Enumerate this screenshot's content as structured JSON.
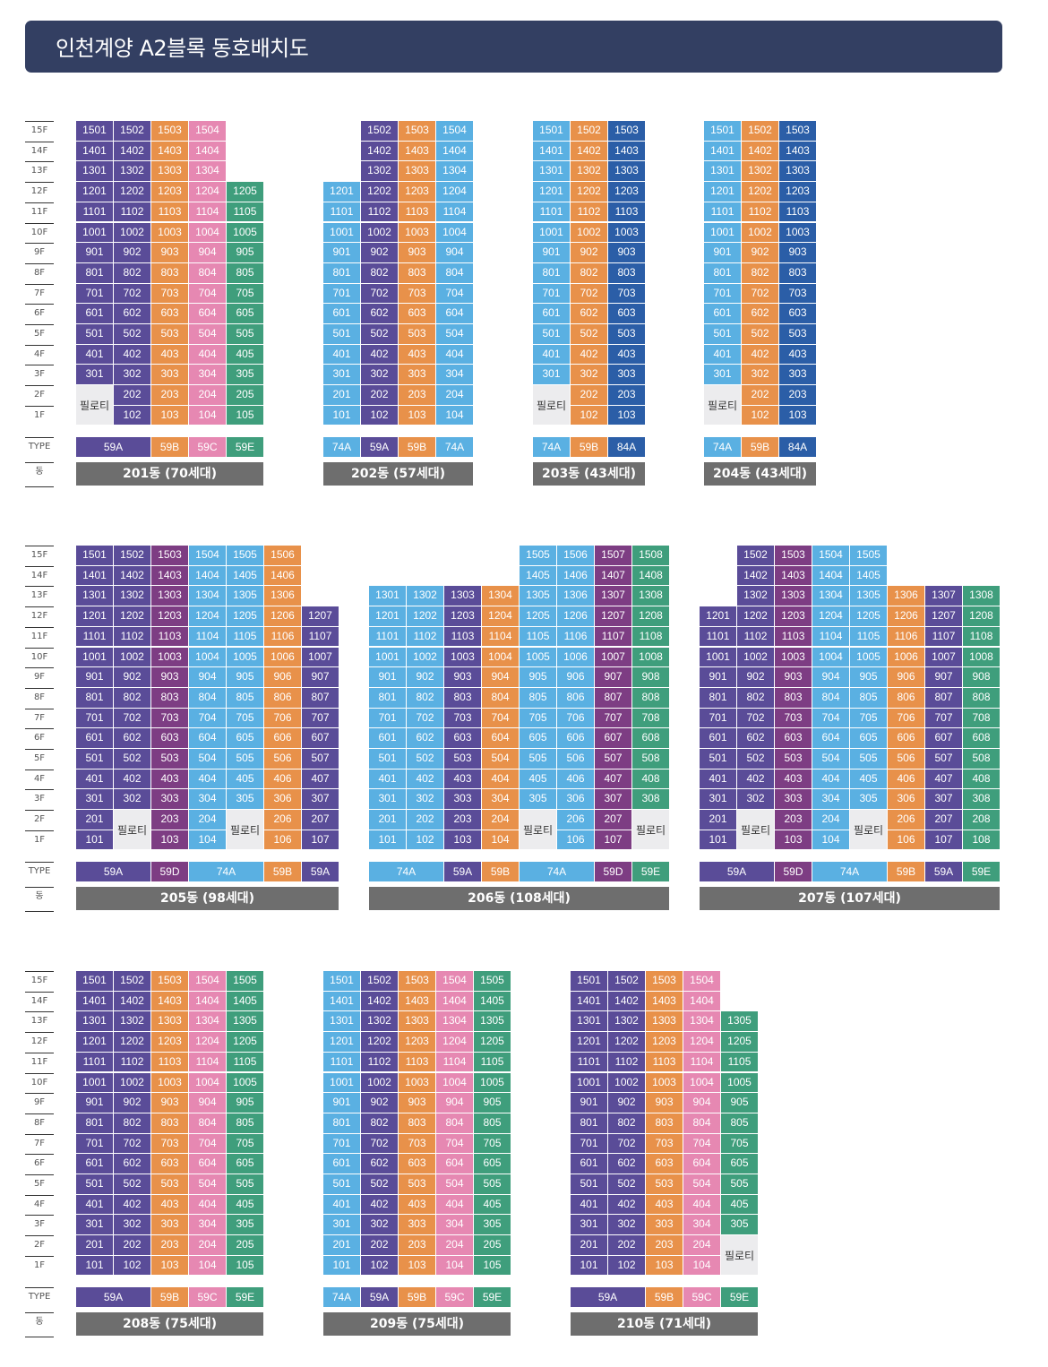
{
  "title": "인천계양 A2블록 동호배치도",
  "axis_labels": {
    "floors": [
      "15F",
      "14F",
      "13F",
      "12F",
      "11F",
      "10F",
      "9F",
      "8F",
      "7F",
      "6F",
      "5F",
      "4F",
      "3F",
      "2F",
      "1F"
    ],
    "type": "TYPE",
    "dong": "동"
  },
  "colors": {
    "59A": "#5a4c98",
    "59B": "#e8914a",
    "59C": "#e688b2",
    "59D": "#7d3d83",
    "59E": "#3f9e7c",
    "74A": "#5ab0e2",
    "84A": "#2b5ea7",
    "piloti_bg": "#ececee",
    "header_bg": "#333f62",
    "label_bg": "#6e6e6e"
  },
  "piloti_label": "필로티",
  "buildings": [
    {
      "id": "201",
      "label": "201동 (70세대)",
      "cols": [
        {
          "type": "59A",
          "top": 15,
          "bottom": 3
        },
        {
          "type": "59A",
          "top": 15,
          "bottom": 1
        },
        {
          "type": "59B",
          "top": 15,
          "bottom": 1
        },
        {
          "type": "59C",
          "top": 15,
          "bottom": 1
        },
        {
          "type": "59E",
          "top": 12,
          "bottom": 1
        }
      ],
      "piloti": [
        {
          "from": 0,
          "to": 0,
          "floors": [
            2,
            1
          ]
        }
      ],
      "types": [
        {
          "label": "59A",
          "type": "59A",
          "span": 2
        },
        {
          "label": "59B",
          "type": "59B",
          "span": 1
        },
        {
          "label": "59C",
          "type": "59C",
          "span": 1
        },
        {
          "label": "59E",
          "type": "59E",
          "span": 1
        }
      ]
    },
    {
      "id": "202",
      "label": "202동 (57세대)",
      "cols": [
        {
          "type": "74A",
          "top": 12,
          "bottom": 1
        },
        {
          "type": "59A",
          "top": 15,
          "bottom": 1,
          "startNum": 2
        },
        {
          "type": "59B",
          "top": 15,
          "bottom": 1,
          "startNum": 3
        },
        {
          "type": "74A",
          "top": 15,
          "bottom": 1,
          "startNum": 4
        }
      ],
      "numShift": [
        {
          "col": 1,
          "floors": [
            15,
            14,
            13
          ],
          "num": 2
        },
        {
          "col": 2,
          "floors": [
            15,
            14,
            13
          ],
          "num": 3
        },
        {
          "col": 3,
          "floors": [
            15,
            14,
            13
          ],
          "num": 4
        }
      ],
      "piloti": [],
      "types": [
        {
          "label": "74A",
          "type": "74A",
          "span": 1
        },
        {
          "label": "59A",
          "type": "59A",
          "span": 1
        },
        {
          "label": "59B",
          "type": "59B",
          "span": 1
        },
        {
          "label": "74A",
          "type": "74A",
          "span": 1
        }
      ]
    },
    {
      "id": "203",
      "label": "203동 (43세대)",
      "cols": [
        {
          "type": "74A",
          "top": 15,
          "bottom": 3
        },
        {
          "type": "59B",
          "top": 15,
          "bottom": 1
        },
        {
          "type": "84A",
          "top": 15,
          "bottom": 1
        }
      ],
      "piloti": [
        {
          "from": 0,
          "to": 0,
          "floors": [
            2,
            1
          ]
        }
      ],
      "types": [
        {
          "label": "74A",
          "type": "74A",
          "span": 1
        },
        {
          "label": "59B",
          "type": "59B",
          "span": 1
        },
        {
          "label": "84A",
          "type": "84A",
          "span": 1
        }
      ]
    },
    {
      "id": "204",
      "label": "204동 (43세대)",
      "cols": [
        {
          "type": "74A",
          "top": 15,
          "bottom": 3
        },
        {
          "type": "59B",
          "top": 15,
          "bottom": 1
        },
        {
          "type": "84A",
          "top": 15,
          "bottom": 1
        }
      ],
      "piloti": [
        {
          "from": 0,
          "to": 0,
          "floors": [
            2,
            1
          ]
        }
      ],
      "types": [
        {
          "label": "74A",
          "type": "74A",
          "span": 1
        },
        {
          "label": "59B",
          "type": "59B",
          "span": 1
        },
        {
          "label": "84A",
          "type": "84A",
          "span": 1
        }
      ]
    },
    {
      "id": "205",
      "label": "205동 (98세대)",
      "cols": [
        {
          "type": "59A",
          "top": 15,
          "bottom": 1
        },
        {
          "type": "59A",
          "top": 15,
          "bottom": 3
        },
        {
          "type": "59D",
          "top": 15,
          "bottom": 1
        },
        {
          "type": "74A",
          "top": 15,
          "bottom": 1
        },
        {
          "type": "74A",
          "top": 15,
          "bottom": 3
        },
        {
          "type": "59B",
          "top": 15,
          "bottom": 1
        },
        {
          "type": "59A",
          "top": 12,
          "bottom": 1
        }
      ],
      "piloti": [
        {
          "from": 1,
          "to": 1,
          "floors": [
            2,
            1
          ]
        },
        {
          "from": 4,
          "to": 4,
          "floors": [
            2,
            1
          ]
        }
      ],
      "types": [
        {
          "label": "59A",
          "type": "59A",
          "span": 2
        },
        {
          "label": "59D",
          "type": "59D",
          "span": 1
        },
        {
          "label": "74A",
          "type": "74A",
          "span": 2
        },
        {
          "label": "59B",
          "type": "59B",
          "span": 1
        },
        {
          "label": "59A",
          "type": "59A",
          "span": 1
        }
      ]
    },
    {
      "id": "206",
      "label": "206동 (108세대)",
      "cols": [
        {
          "type": "74A",
          "top": 13,
          "bottom": 1
        },
        {
          "type": "74A",
          "top": 13,
          "bottom": 1
        },
        {
          "type": "59A",
          "top": 13,
          "bottom": 1
        },
        {
          "type": "59B",
          "top": 13,
          "bottom": 1
        },
        {
          "type": "74A",
          "top": 15,
          "bottom": 3
        },
        {
          "type": "74A",
          "top": 15,
          "bottom": 1
        },
        {
          "type": "59D",
          "top": 15,
          "bottom": 1
        },
        {
          "type": "59E",
          "top": 15,
          "bottom": 3
        }
      ],
      "piloti": [
        {
          "from": 4,
          "to": 4,
          "floors": [
            2,
            1
          ]
        },
        {
          "from": 7,
          "to": 7,
          "floors": [
            2,
            1
          ]
        }
      ],
      "types": [
        {
          "label": "74A",
          "type": "74A",
          "span": 2
        },
        {
          "label": "59A",
          "type": "59A",
          "span": 1
        },
        {
          "label": "59B",
          "type": "59B",
          "span": 1
        },
        {
          "label": "74A",
          "type": "74A",
          "span": 2
        },
        {
          "label": "59D",
          "type": "59D",
          "span": 1
        },
        {
          "label": "59E",
          "type": "59E",
          "span": 1
        }
      ]
    },
    {
      "id": "207",
      "label": "207동 (107세대)",
      "cols": [
        {
          "type": "59A",
          "top": 12,
          "bottom": 1
        },
        {
          "type": "59A",
          "top": 15,
          "bottom": 3
        },
        {
          "type": "59D",
          "top": 15,
          "bottom": 1
        },
        {
          "type": "74A",
          "top": 15,
          "bottom": 1
        },
        {
          "type": "74A",
          "top": 15,
          "bottom": 3
        },
        {
          "type": "59B",
          "top": 13,
          "bottom": 1
        },
        {
          "type": "59A",
          "top": 13,
          "bottom": 1
        },
        {
          "type": "59E",
          "top": 13,
          "bottom": 1
        }
      ],
      "piloti": [
        {
          "from": 1,
          "to": 1,
          "floors": [
            2,
            1
          ]
        },
        {
          "from": 4,
          "to": 4,
          "floors": [
            2,
            1
          ]
        }
      ],
      "types": [
        {
          "label": "59A",
          "type": "59A",
          "span": 2
        },
        {
          "label": "59D",
          "type": "59D",
          "span": 1
        },
        {
          "label": "74A",
          "type": "74A",
          "span": 2
        },
        {
          "label": "59B",
          "type": "59B",
          "span": 1
        },
        {
          "label": "59A",
          "type": "59A",
          "span": 1
        },
        {
          "label": "59E",
          "type": "59E",
          "span": 1
        }
      ]
    },
    {
      "id": "208",
      "label": "208동 (75세대)",
      "cols": [
        {
          "type": "59A",
          "top": 15,
          "bottom": 1
        },
        {
          "type": "59A",
          "top": 15,
          "bottom": 1
        },
        {
          "type": "59B",
          "top": 15,
          "bottom": 1
        },
        {
          "type": "59C",
          "top": 15,
          "bottom": 1
        },
        {
          "type": "59E",
          "top": 15,
          "bottom": 1
        }
      ],
      "piloti": [],
      "types": [
        {
          "label": "59A",
          "type": "59A",
          "span": 2
        },
        {
          "label": "59B",
          "type": "59B",
          "span": 1
        },
        {
          "label": "59C",
          "type": "59C",
          "span": 1
        },
        {
          "label": "59E",
          "type": "59E",
          "span": 1
        }
      ]
    },
    {
      "id": "209",
      "label": "209동 (75세대)",
      "cols": [
        {
          "type": "74A",
          "top": 15,
          "bottom": 1
        },
        {
          "type": "59A",
          "top": 15,
          "bottom": 1
        },
        {
          "type": "59B",
          "top": 15,
          "bottom": 1
        },
        {
          "type": "59C",
          "top": 15,
          "bottom": 1
        },
        {
          "type": "59E",
          "top": 15,
          "bottom": 1
        }
      ],
      "piloti": [],
      "types": [
        {
          "label": "74A",
          "type": "74A",
          "span": 1
        },
        {
          "label": "59A",
          "type": "59A",
          "span": 1
        },
        {
          "label": "59B",
          "type": "59B",
          "span": 1
        },
        {
          "label": "59C",
          "type": "59C",
          "span": 1
        },
        {
          "label": "59E",
          "type": "59E",
          "span": 1
        }
      ]
    },
    {
      "id": "210",
      "label": "210동 (71세대)",
      "cols": [
        {
          "type": "59A",
          "top": 15,
          "bottom": 1
        },
        {
          "type": "59A",
          "top": 15,
          "bottom": 1
        },
        {
          "type": "59B",
          "top": 15,
          "bottom": 1
        },
        {
          "type": "59C",
          "top": 15,
          "bottom": 1
        },
        {
          "type": "59E",
          "top": 13,
          "bottom": 3
        }
      ],
      "piloti": [
        {
          "from": 4,
          "to": 4,
          "floors": [
            2,
            1
          ]
        }
      ],
      "types": [
        {
          "label": "59A",
          "type": "59A",
          "span": 2
        },
        {
          "label": "59B",
          "type": "59B",
          "span": 1
        },
        {
          "label": "59C",
          "type": "59C",
          "span": 1
        },
        {
          "label": "59E",
          "type": "59E",
          "span": 1
        }
      ]
    }
  ]
}
